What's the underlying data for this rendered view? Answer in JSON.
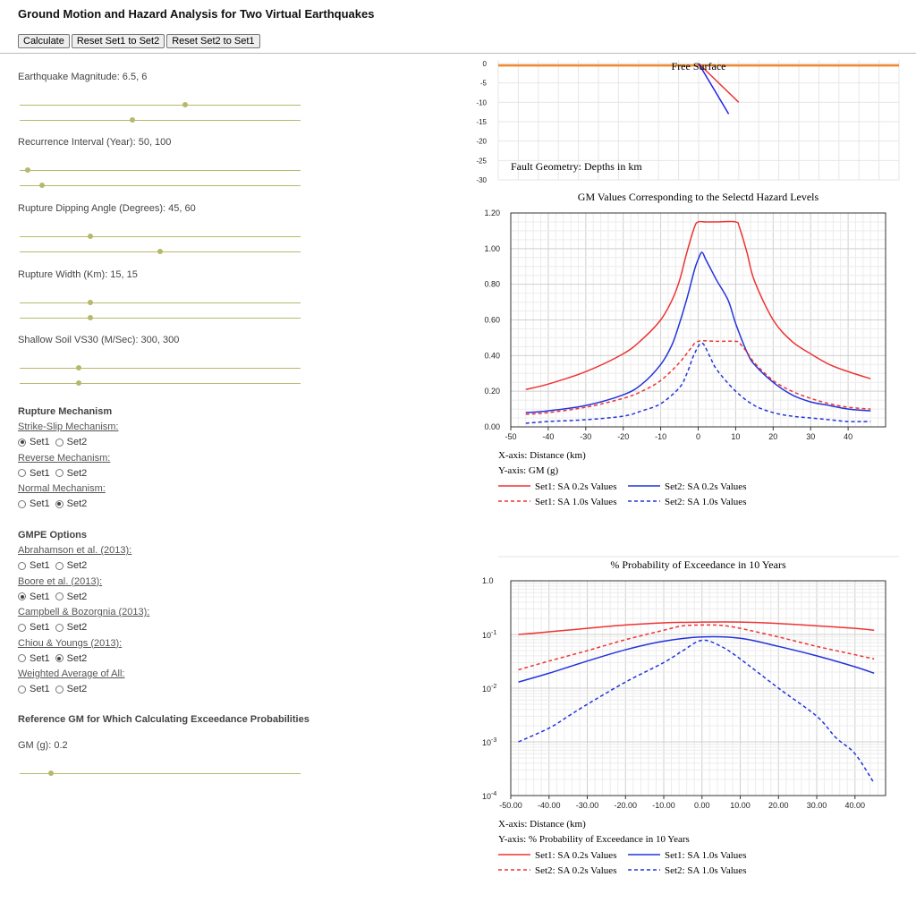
{
  "page_title": "Ground Motion and Hazard Analysis for Two Virtual Earthquakes",
  "toolbar": {
    "calculate": "Calculate",
    "reset1": "Reset Set1 to Set2",
    "reset2": "Reset Set2 to Set1"
  },
  "sliders": [
    {
      "label": "Earthquake Magnitude: 6.5, 6",
      "pos": [
        0.59,
        0.4
      ]
    },
    {
      "label": "Recurrence Interval (Year): 50, 100",
      "pos": [
        0.03,
        0.08
      ]
    },
    {
      "label": "Rupture Dipping Angle (Degrees): 45, 60",
      "pos": [
        0.25,
        0.5
      ]
    },
    {
      "label": "Rupture Width (Km): 15, 15",
      "pos": [
        0.25,
        0.25
      ]
    },
    {
      "label": "Shallow Soil VS30 (M/Sec): 300, 300",
      "pos": [
        0.21,
        0.21
      ]
    }
  ],
  "rupture_mechanism": {
    "title": "Rupture Mechanism",
    "groups": [
      {
        "label": "Strike-Slip Mechanism:",
        "set1": true,
        "set2": false
      },
      {
        "label": "Reverse Mechanism:",
        "set1": false,
        "set2": false
      },
      {
        "label": "Normal Mechanism:",
        "set1": false,
        "set2": true
      }
    ]
  },
  "gmpe": {
    "title": "GMPE Options",
    "groups": [
      {
        "label": "Abrahamson et al. (2013):",
        "set1": false,
        "set2": false
      },
      {
        "label": "Boore et al. (2013):",
        "set1": true,
        "set2": false
      },
      {
        "label": "Campbell & Bozorgnia (2013):",
        "set1": false,
        "set2": false
      },
      {
        "label": "Chiou & Youngs (2013):",
        "set1": false,
        "set2": true
      },
      {
        "label": "Weighted Average of All:",
        "set1": false,
        "set2": false
      }
    ]
  },
  "radio_labels": {
    "set1": "Set1",
    "set2": "Set2"
  },
  "reference": {
    "title": "Reference GM for Which Calculating Exceedance Probabilities",
    "label": "GM (g): 0.2",
    "pos": 0.11
  },
  "chart_data": [
    {
      "type": "line",
      "title": "Free Surface",
      "annotation": "Fault Geometry: Depths in km",
      "ylim": [
        -30,
        0
      ],
      "yticks": [
        "0",
        "-5",
        "-10",
        "-15",
        "-20",
        "-25",
        "-30"
      ],
      "series": [
        {
          "color": "#ee3333",
          "x": [
            0,
            10
          ],
          "y": [
            0,
            -10
          ]
        },
        {
          "color": "#2222ee",
          "x": [
            0,
            7.5
          ],
          "y": [
            0,
            -13
          ]
        }
      ],
      "surface_color": "#f08a30",
      "grid": true
    },
    {
      "type": "line",
      "title": "GM Values Corresponding to the Selectd Hazard Levels",
      "xlabel": "X-axis: Distance (km)",
      "ylabel": "Y-axis: GM (g)",
      "xlim": [
        -50,
        50
      ],
      "ylim": [
        0,
        1.2
      ],
      "xticks": [
        "-50",
        "-40",
        "-30",
        "-20",
        "-10",
        "0",
        "10",
        "20",
        "30",
        "40"
      ],
      "yticks": [
        "0.00",
        "0.20",
        "0.40",
        "0.60",
        "0.80",
        "1.00",
        "1.20"
      ],
      "grid": true,
      "legend_position": "bottom",
      "series": [
        {
          "name": "Set1: SA 0.2s Values",
          "color": "#ee3333",
          "dash": false,
          "x": [
            -46,
            -40,
            -30,
            -20,
            -15,
            -10,
            -7,
            -5,
            -3,
            -1,
            0,
            2,
            5,
            10,
            11,
            13,
            15,
            20,
            25,
            30,
            35,
            40,
            46
          ],
          "y": [
            0.21,
            0.24,
            0.31,
            0.41,
            0.49,
            0.6,
            0.71,
            0.82,
            0.98,
            1.12,
            1.15,
            1.15,
            1.15,
            1.15,
            1.12,
            0.98,
            0.82,
            0.6,
            0.48,
            0.41,
            0.35,
            0.31,
            0.27
          ]
        },
        {
          "name": "Set2: SA 0.2s Values",
          "color": "#2233dd",
          "dash": false,
          "x": [
            -46,
            -40,
            -30,
            -20,
            -15,
            -10,
            -7,
            -5,
            -3,
            -1,
            0,
            1,
            2,
            3,
            5,
            8,
            10,
            13,
            15,
            20,
            25,
            30,
            35,
            40,
            46
          ],
          "y": [
            0.08,
            0.09,
            0.12,
            0.18,
            0.24,
            0.35,
            0.46,
            0.58,
            0.72,
            0.88,
            0.94,
            0.98,
            0.94,
            0.9,
            0.82,
            0.71,
            0.58,
            0.42,
            0.35,
            0.25,
            0.18,
            0.14,
            0.12,
            0.1,
            0.09
          ]
        },
        {
          "name": "Set1: SA 1.0s Values",
          "color": "#ee3333",
          "dash": true,
          "x": [
            -46,
            -40,
            -30,
            -20,
            -15,
            -10,
            -5,
            -2,
            0,
            5,
            10,
            11,
            13,
            15,
            20,
            25,
            30,
            35,
            40,
            46
          ],
          "y": [
            0.07,
            0.08,
            0.11,
            0.16,
            0.2,
            0.26,
            0.36,
            0.44,
            0.48,
            0.48,
            0.48,
            0.47,
            0.42,
            0.36,
            0.26,
            0.2,
            0.16,
            0.13,
            0.11,
            0.1
          ]
        },
        {
          "name": "Set2: SA 1.0s Values",
          "color": "#2233dd",
          "dash": true,
          "x": [
            -46,
            -40,
            -30,
            -20,
            -15,
            -10,
            -5,
            -3,
            -1,
            1,
            3,
            5,
            10,
            15,
            20,
            25,
            30,
            35,
            40,
            46
          ],
          "y": [
            0.02,
            0.03,
            0.04,
            0.06,
            0.09,
            0.13,
            0.22,
            0.3,
            0.41,
            0.47,
            0.4,
            0.32,
            0.2,
            0.12,
            0.08,
            0.06,
            0.05,
            0.04,
            0.03,
            0.03
          ]
        }
      ]
    },
    {
      "type": "line",
      "title": "% Probability of Exceedance in 10 Years",
      "xlabel": "X-axis: Distance (km)",
      "ylabel": "Y-axis: % Probability of Exceedance in 10 Years",
      "xlim": [
        -50,
        48
      ],
      "ylim": [
        0.0001,
        1
      ],
      "yscale": "log",
      "xticks": [
        "-50.00",
        "-40.00",
        "-30.00",
        "-20.00",
        "-10.00",
        "0.00",
        "10.00",
        "20.00",
        "30.00",
        "40.00"
      ],
      "yticks": [
        "1.0",
        "10-1",
        "10-2",
        "10-3",
        "10-4"
      ],
      "grid": true,
      "legend_position": "bottom",
      "series": [
        {
          "name": "Set1: SA 0.2s Values",
          "color": "#ee3333",
          "dash": false,
          "x": [
            -48,
            -40,
            -30,
            -20,
            -10,
            0,
            10,
            20,
            30,
            40,
            45
          ],
          "y": [
            0.1,
            0.112,
            0.13,
            0.15,
            0.165,
            0.17,
            0.17,
            0.16,
            0.145,
            0.13,
            0.12
          ]
        },
        {
          "name": "Set1: SA 1.0s Values",
          "color": "#2233dd",
          "dash": false,
          "x": [
            -48,
            -40,
            -30,
            -20,
            -10,
            0,
            10,
            20,
            30,
            40,
            45
          ],
          "y": [
            0.013,
            0.019,
            0.032,
            0.052,
            0.075,
            0.09,
            0.085,
            0.06,
            0.04,
            0.025,
            0.019
          ]
        },
        {
          "name": "Set2: SA 0.2s Values",
          "color": "#ee3333",
          "dash": true,
          "x": [
            -48,
            -40,
            -30,
            -20,
            -10,
            -5,
            0,
            5,
            10,
            20,
            30,
            40,
            45
          ],
          "y": [
            0.022,
            0.032,
            0.05,
            0.08,
            0.12,
            0.145,
            0.15,
            0.148,
            0.13,
            0.09,
            0.06,
            0.042,
            0.035
          ]
        },
        {
          "name": "Set2: SA 1.0s Values",
          "color": "#2233dd",
          "dash": true,
          "x": [
            -48,
            -40,
            -35,
            -30,
            -20,
            -10,
            -5,
            0,
            5,
            10,
            20,
            30,
            35,
            40,
            45
          ],
          "y": [
            0.001,
            0.0018,
            0.003,
            0.005,
            0.013,
            0.03,
            0.05,
            0.078,
            0.06,
            0.035,
            0.01,
            0.003,
            0.0012,
            0.0006,
            0.00017
          ]
        }
      ]
    }
  ]
}
